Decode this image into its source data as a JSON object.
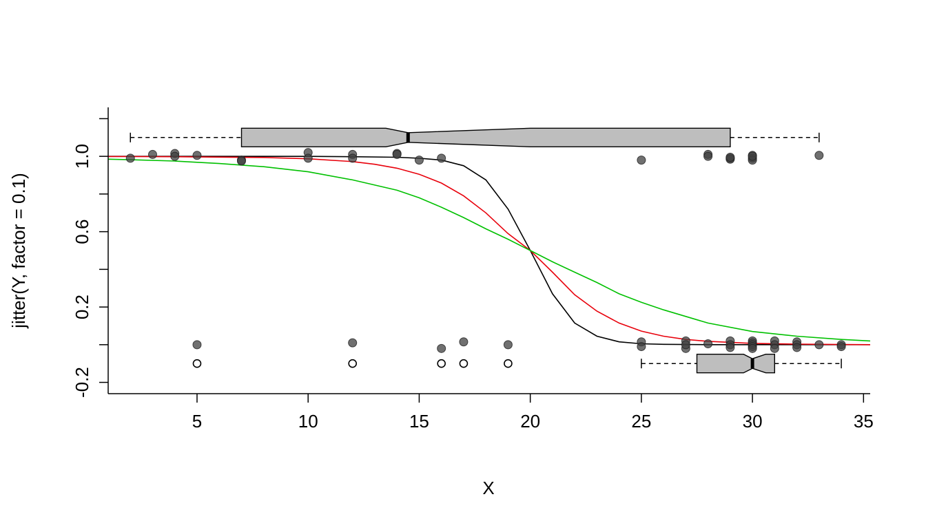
{
  "chart_data": {
    "type": "scatter",
    "xlabel": "X",
    "ylabel": "jitter(Y, factor = 0.1)",
    "xlim": [
      1,
      35.3
    ],
    "ylim": [
      -0.26,
      1.26
    ],
    "x_ticks": [
      5,
      10,
      15,
      20,
      25,
      30,
      35
    ],
    "x_tick_labels": [
      "5",
      "10",
      "15",
      "20",
      "25",
      "30",
      "35"
    ],
    "y_ticks": [
      -0.2,
      0.2,
      0.6,
      1.0
    ],
    "y_tick_labels": [
      "-0.2",
      "0.2",
      "0.6",
      "1.0"
    ],
    "y_minor_ticks": [
      0.0,
      0.4,
      0.8,
      1.2
    ],
    "grid": false,
    "colors": {
      "points": "#404040",
      "open_points": "#000000",
      "box_fill": "#bebebe",
      "curve_black": "#000000",
      "curve_red": "#e8000b",
      "curve_green": "#00c000"
    },
    "points_y1": [
      [
        2,
        0.99
      ],
      [
        3,
        1.01
      ],
      [
        4,
        1.015
      ],
      [
        4,
        1.0
      ],
      [
        5,
        1.005
      ],
      [
        7,
        0.98
      ],
      [
        7,
        0.975
      ],
      [
        10,
        1.02
      ],
      [
        10,
        0.99
      ],
      [
        12,
        1.01
      ],
      [
        12,
        0.99
      ],
      [
        14,
        1.015
      ],
      [
        14,
        1.01
      ],
      [
        15,
        0.98
      ],
      [
        16,
        0.99
      ],
      [
        25,
        0.98
      ],
      [
        28,
        1.01
      ],
      [
        28,
        1.0
      ],
      [
        29,
        0.99
      ],
      [
        29,
        0.985
      ],
      [
        29,
        0.995
      ],
      [
        30,
        1.005
      ],
      [
        30,
        0.99
      ],
      [
        30,
        0.98
      ],
      [
        30,
        1.0
      ],
      [
        33,
        1.005
      ]
    ],
    "points_y0": [
      [
        5,
        0.0
      ],
      [
        12,
        0.01
      ],
      [
        16,
        -0.02
      ],
      [
        17,
        0.015
      ],
      [
        19,
        0.0
      ],
      [
        25,
        0.015
      ],
      [
        25,
        -0.01
      ],
      [
        27,
        0.02
      ],
      [
        27,
        -0.02
      ],
      [
        27,
        0.0
      ],
      [
        28,
        0.005
      ],
      [
        29,
        0.02
      ],
      [
        29,
        0.0
      ],
      [
        29,
        -0.015
      ],
      [
        30,
        0.02
      ],
      [
        30,
        0.01
      ],
      [
        30,
        0.0
      ],
      [
        30,
        -0.01
      ],
      [
        30,
        -0.02
      ],
      [
        31,
        0.02
      ],
      [
        31,
        0.0
      ],
      [
        31,
        -0.02
      ],
      [
        32,
        0.015
      ],
      [
        32,
        0.0
      ],
      [
        32,
        -0.015
      ],
      [
        33,
        0.0
      ],
      [
        34,
        0.0
      ],
      [
        34,
        -0.01
      ]
    ],
    "open_points": [
      [
        5,
        -0.1
      ],
      [
        12,
        -0.1
      ],
      [
        16,
        -0.1
      ],
      [
        17,
        -0.1
      ],
      [
        19,
        -0.1
      ]
    ],
    "boxplots": [
      {
        "group": "Y=1",
        "y_center": 1.1,
        "whisker_low": 2,
        "q1": 7,
        "notch_low": 13.5,
        "median": 14.5,
        "notch_high": 20,
        "q3": 29,
        "whisker_high": 33
      },
      {
        "group": "Y=0",
        "y_center": -0.1,
        "whisker_low": 25,
        "q1": 27.5,
        "notch_low": 29.6,
        "median": 30,
        "notch_high": 30.6,
        "q3": 31,
        "whisker_high": 34
      }
    ],
    "series": [
      {
        "color": "#000000",
        "x": [
          1,
          2,
          4,
          6,
          8,
          10,
          12,
          14,
          15,
          16,
          17,
          18,
          19,
          20,
          21,
          22,
          23,
          24,
          25,
          26,
          28,
          30,
          32,
          34,
          35.3
        ],
        "y": [
          1.0,
          1.0,
          1.0,
          1.0,
          1.0,
          1.0,
          0.998,
          0.995,
          0.99,
          0.98,
          0.95,
          0.875,
          0.72,
          0.5,
          0.27,
          0.115,
          0.045,
          0.015,
          0.005,
          0.002,
          0.0,
          0.0,
          0.0,
          0.0,
          0.0
        ]
      },
      {
        "color": "#e8000b",
        "x": [
          1,
          2,
          4,
          6,
          8,
          10,
          12,
          13,
          14,
          15,
          16,
          17,
          18,
          19,
          20,
          21,
          22,
          23,
          24,
          25,
          26,
          27,
          28,
          30,
          32,
          34,
          35.3
        ],
        "y": [
          0.999,
          0.999,
          0.998,
          0.996,
          0.994,
          0.987,
          0.972,
          0.958,
          0.937,
          0.905,
          0.858,
          0.79,
          0.7,
          0.59,
          0.5,
          0.385,
          0.265,
          0.178,
          0.115,
          0.072,
          0.045,
          0.028,
          0.018,
          0.007,
          0.003,
          0.001,
          0.0
        ]
      },
      {
        "color": "#00c000",
        "x": [
          1,
          2,
          4,
          6,
          8,
          10,
          12,
          14,
          15,
          16,
          17,
          18,
          19,
          20,
          21,
          22,
          23,
          24,
          25,
          26,
          27,
          28,
          30,
          32,
          34,
          35.3
        ],
        "y": [
          0.985,
          0.982,
          0.975,
          0.962,
          0.945,
          0.918,
          0.875,
          0.82,
          0.78,
          0.73,
          0.675,
          0.615,
          0.56,
          0.5,
          0.44,
          0.385,
          0.33,
          0.27,
          0.225,
          0.185,
          0.15,
          0.115,
          0.07,
          0.045,
          0.028,
          0.02
        ]
      }
    ]
  }
}
